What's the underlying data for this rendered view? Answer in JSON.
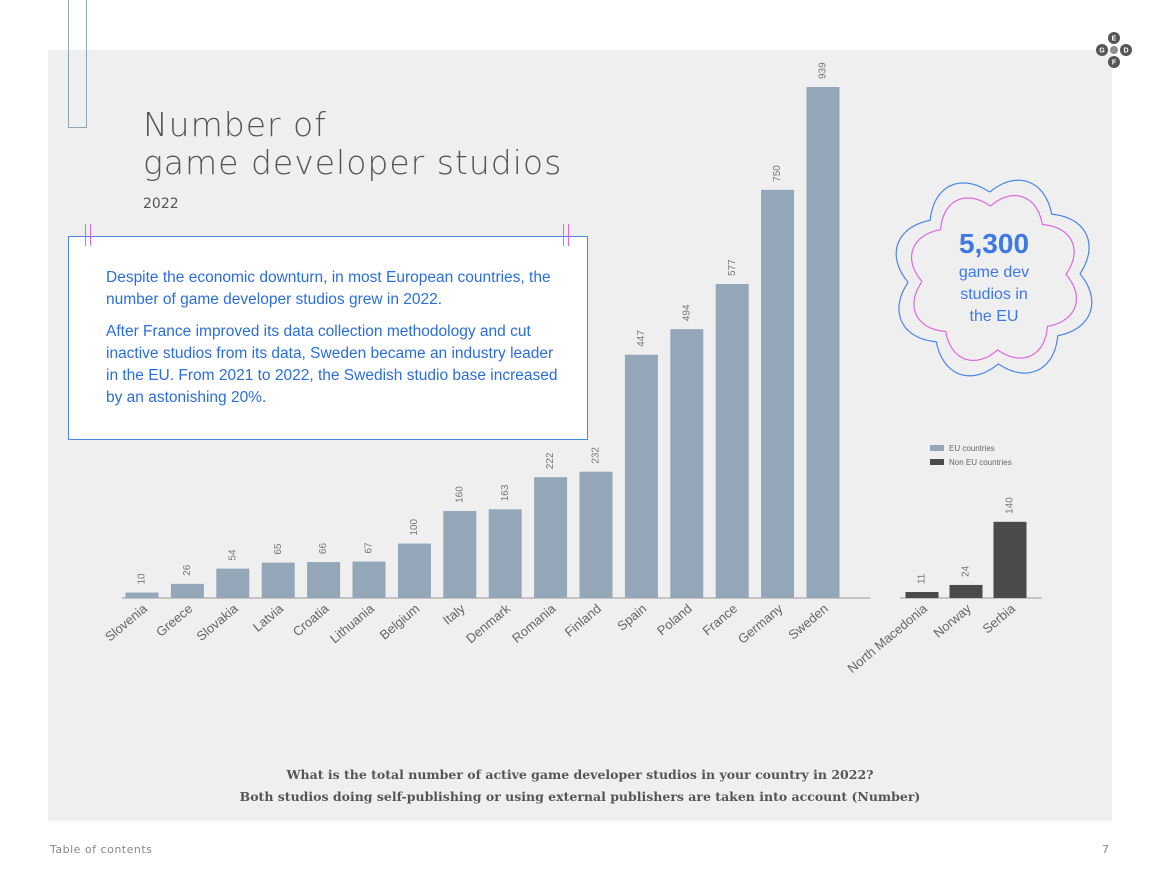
{
  "title_line1": "Number of",
  "title_line2": "game developer studios",
  "subtitle": "2022",
  "text_paragraphs": [
    "Despite the economic downturn, in most European countries, the number of game developer studios grew in 2022.",
    "After France improved its data collection methodology and cut inactive studios from its data, Sweden became an industry leader in the EU. From 2021 to 2022, the Swedish studio base increased by an astonishing 20%."
  ],
  "highlight": {
    "big": "5,300",
    "line1": "game dev",
    "line2": "studios in",
    "line3": "the EU"
  },
  "legend": {
    "eu": "EU countries",
    "non_eu": "Non EU countries"
  },
  "question_line1": "What is the total number of active game developer studios in your country in 2022?",
  "question_line2": "Both studios doing self-publishing or using external publishers are taken into account (Number)",
  "footer": {
    "left": "Table of contents",
    "page": "7"
  },
  "logo_letters": [
    "E",
    "G",
    "D",
    "F"
  ],
  "colors": {
    "eu": "#93a7b8",
    "non_eu": "#4a4a4a",
    "accent_blue": "#3c79e6",
    "accent_pink": "#e066e0"
  },
  "chart_data": {
    "type": "bar",
    "categories": [
      "Slovenia",
      "Greece",
      "Slovakia",
      "Latvia",
      "Croatia",
      "Lithuania",
      "Belgium",
      "Italy",
      "Denmark",
      "Romania",
      "Finland",
      "Spain",
      "Poland",
      "France",
      "Germany",
      "Sweden",
      "North Macedonia",
      "Norway",
      "Serbia"
    ],
    "values": [
      10,
      26,
      54,
      65,
      66,
      67,
      100,
      160,
      163,
      222,
      232,
      447,
      494,
      577,
      750,
      939,
      11,
      24,
      140
    ],
    "groups": [
      "eu",
      "eu",
      "eu",
      "eu",
      "eu",
      "eu",
      "eu",
      "eu",
      "eu",
      "eu",
      "eu",
      "eu",
      "eu",
      "eu",
      "eu",
      "eu",
      "non_eu",
      "non_eu",
      "non_eu"
    ],
    "series": [
      {
        "name": "EU countries",
        "group": "eu"
      },
      {
        "name": "Non EU countries",
        "group": "non_eu"
      }
    ],
    "ylim": [
      0,
      939
    ],
    "grid": false,
    "legend_position": "right"
  }
}
